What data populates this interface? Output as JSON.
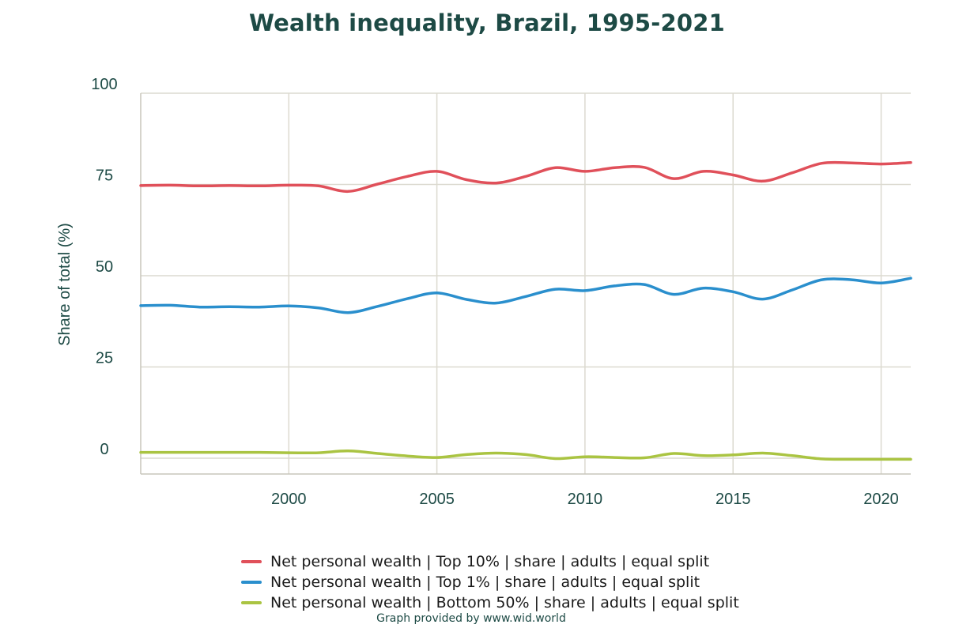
{
  "chart_data": {
    "type": "line",
    "title": "Wealth inequality, Brazil, 1995-2021",
    "ylabel": "Share of total (%)",
    "xlabel": "",
    "ylim": [
      0,
      100
    ],
    "xlim": [
      1995,
      2021
    ],
    "yticks": [
      0,
      25,
      50,
      75,
      100
    ],
    "xticks": [
      2000,
      2005,
      2010,
      2015,
      2020
    ],
    "grid": true,
    "legend_position": "bottom",
    "x": [
      1995,
      1996,
      1997,
      1998,
      1999,
      2000,
      2001,
      2002,
      2003,
      2004,
      2005,
      2006,
      2007,
      2008,
      2009,
      2010,
      2011,
      2012,
      2013,
      2014,
      2015,
      2016,
      2017,
      2018,
      2019,
      2020,
      2021
    ],
    "series": [
      {
        "name": "Net personal wealth | Top 10% | share | adults | equal split",
        "color": "#e0505a",
        "values": [
          74.7,
          74.8,
          74.6,
          74.7,
          74.6,
          74.8,
          74.6,
          73.1,
          75.1,
          77.2,
          78.6,
          76.3,
          75.4,
          77.2,
          79.6,
          78.6,
          79.6,
          79.7,
          76.6,
          78.6,
          77.6,
          75.9,
          78.2,
          80.8,
          80.9,
          80.6,
          81.0
        ]
      },
      {
        "name": "Net personal wealth | Top 1% | share | adults | equal split",
        "color": "#2a8fcd",
        "values": [
          41.8,
          41.9,
          41.4,
          41.5,
          41.4,
          41.7,
          41.2,
          39.9,
          41.6,
          43.7,
          45.3,
          43.5,
          42.5,
          44.3,
          46.3,
          45.9,
          47.2,
          47.6,
          44.9,
          46.6,
          45.6,
          43.6,
          46.1,
          48.9,
          48.9,
          48.0,
          49.3
        ]
      },
      {
        "name": "Net personal wealth | Bottom 50% | share | adults | equal split",
        "color": "#aac442",
        "values": [
          1.6,
          1.6,
          1.6,
          1.6,
          1.6,
          1.5,
          1.5,
          2.0,
          1.3,
          0.6,
          0.2,
          1.0,
          1.4,
          1.0,
          -0.1,
          0.4,
          0.2,
          0.1,
          1.3,
          0.7,
          0.9,
          1.4,
          0.7,
          -0.2,
          -0.3,
          -0.3,
          -0.3
        ]
      }
    ]
  },
  "credit": "Graph provided by www.wid.world"
}
